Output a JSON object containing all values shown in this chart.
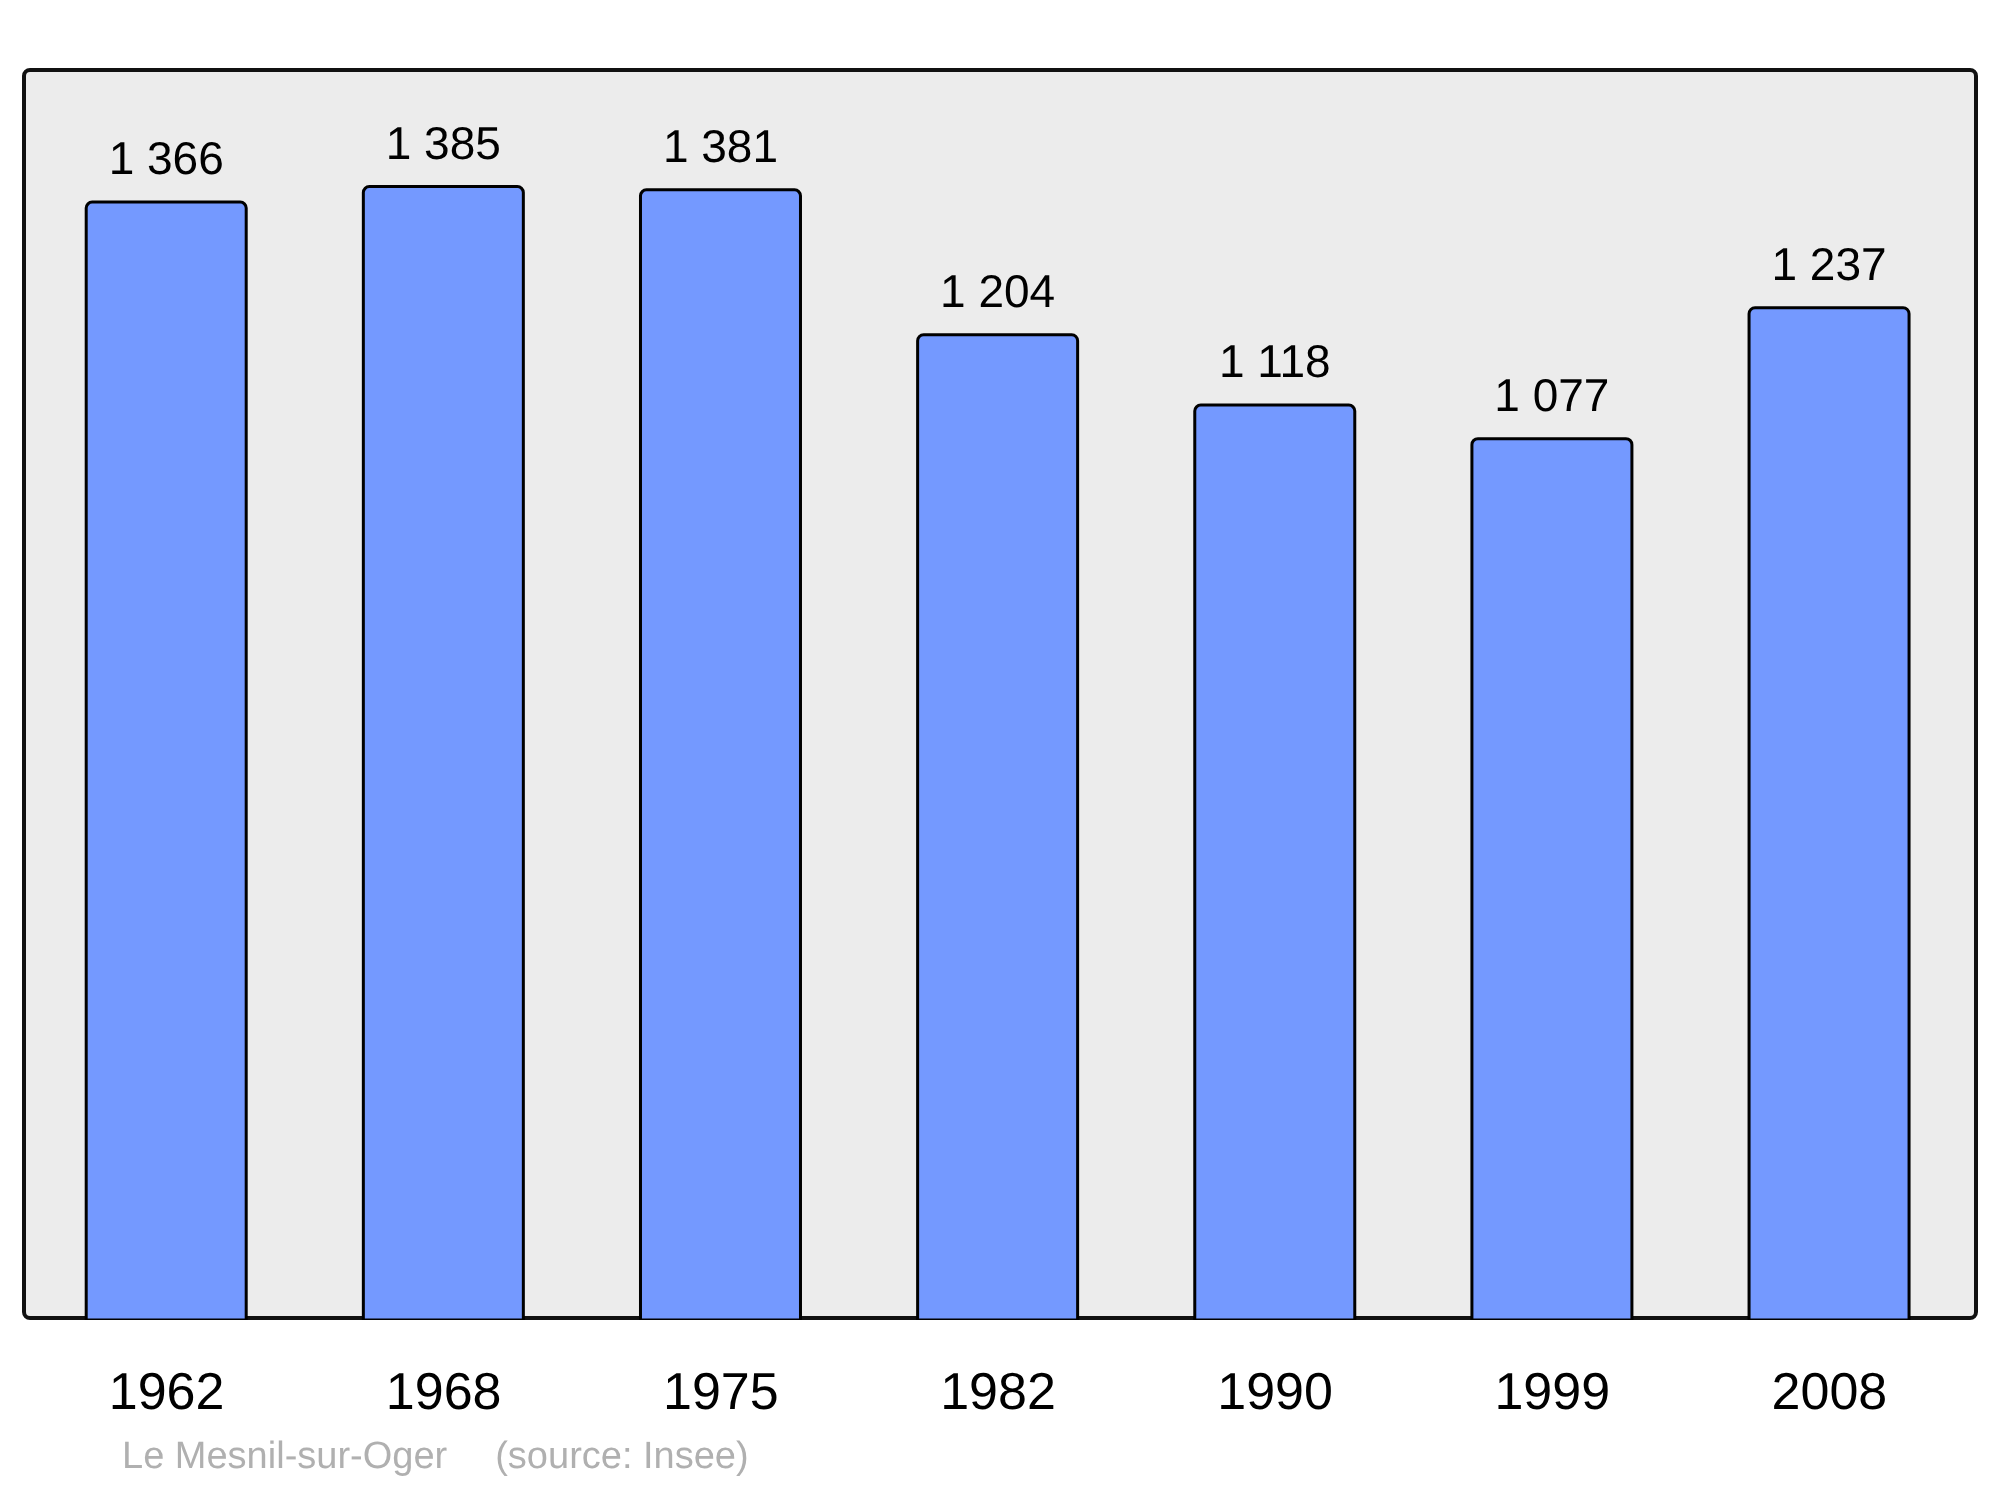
{
  "chart_data": {
    "type": "bar",
    "categories": [
      "1962",
      "1968",
      "1975",
      "1982",
      "1990",
      "1999",
      "2008"
    ],
    "values": [
      1366,
      1385,
      1381,
      1204,
      1118,
      1077,
      1237
    ],
    "value_labels": [
      "1 366",
      "1 385",
      "1 381",
      "1 204",
      "1 118",
      "1 077",
      "1 237"
    ],
    "color": "#7499ff",
    "ylim": [
      0,
      1525
    ],
    "tick_labels": "x",
    "annotations": [
      "Le Mesnil-sur-Oger",
      "(source: Insee)"
    ]
  }
}
